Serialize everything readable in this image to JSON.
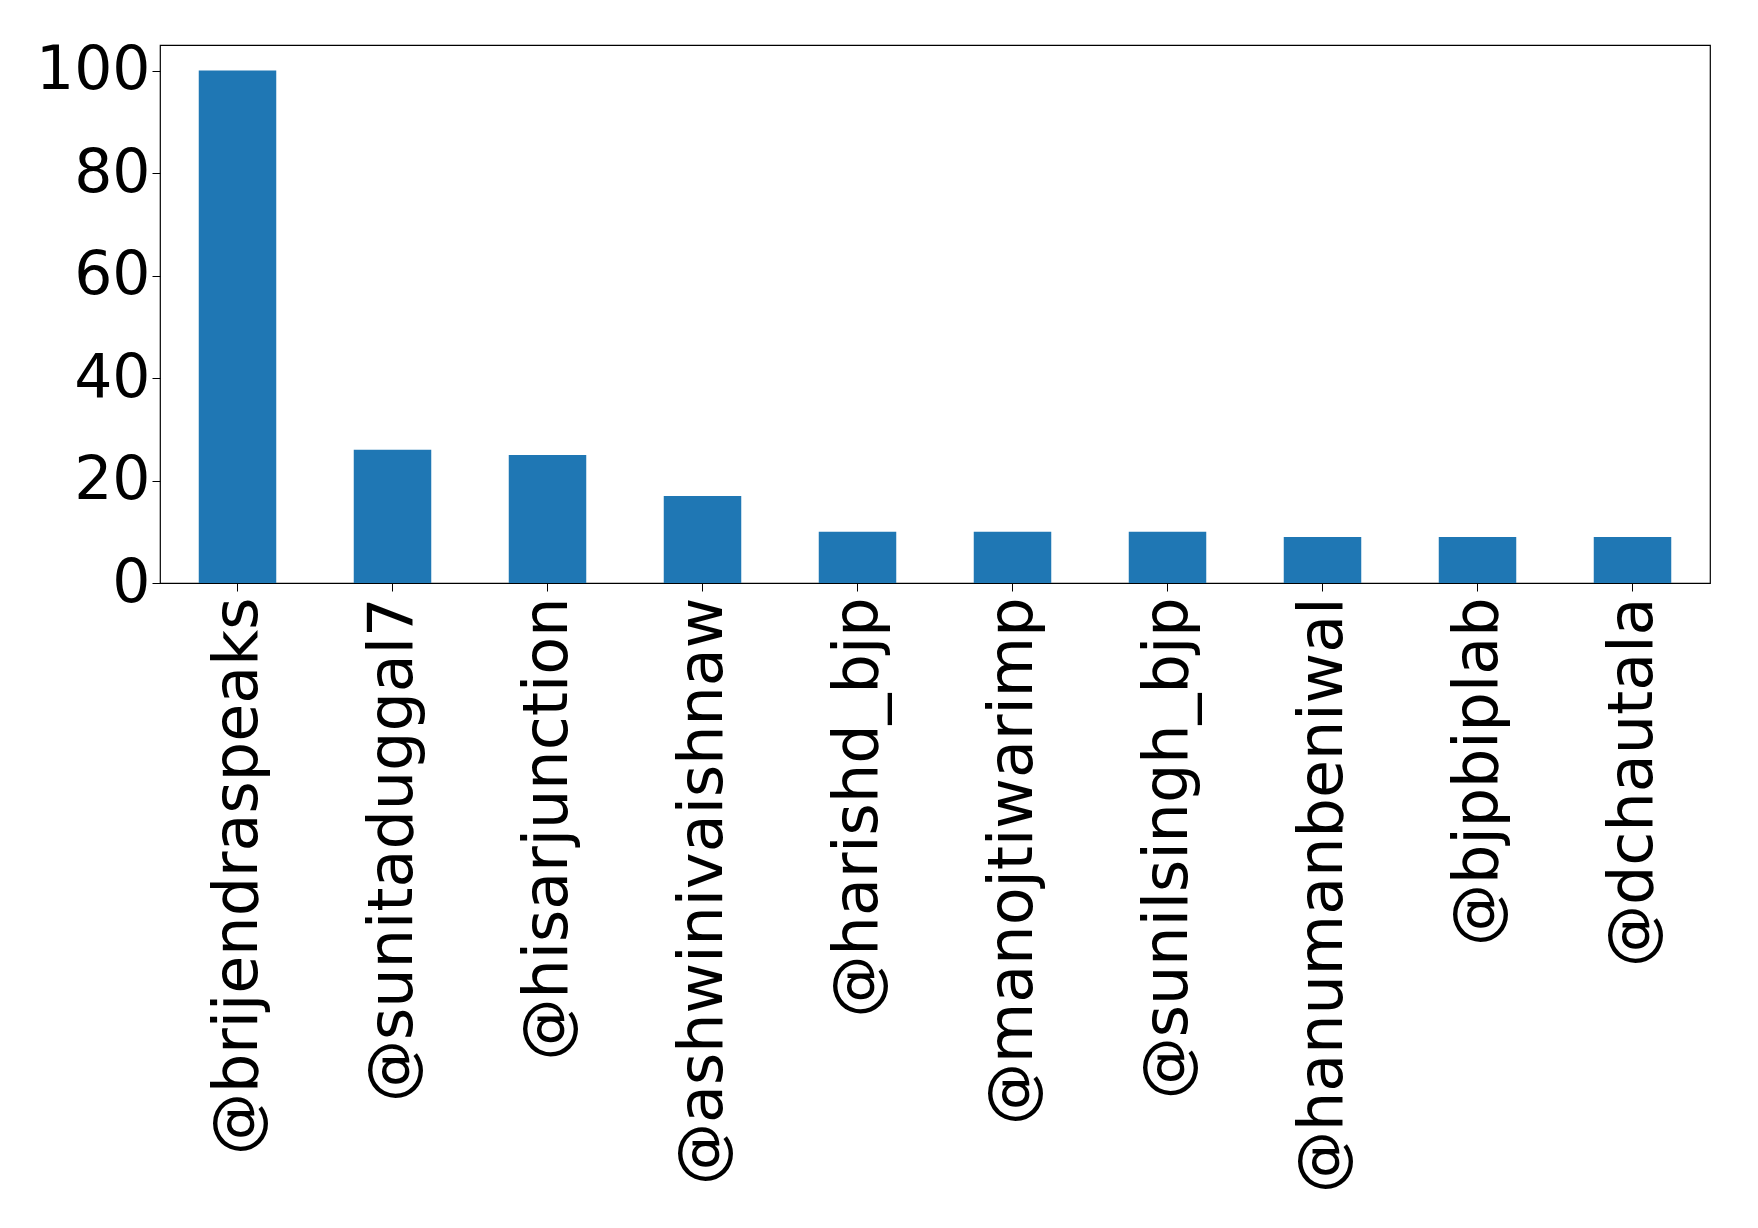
{
  "chart_data": {
    "type": "bar",
    "categories": [
      "@brijendraspeaks",
      "@sunitaduggal7",
      "@hisarjunction",
      "@ashwinivaishnaw",
      "@harishd_bjp",
      "@manojtiwarimp",
      "@sunilsingh_bjp",
      "@hanumanbeniwal",
      "@bjpbiplab",
      "@dchautala"
    ],
    "values": [
      100,
      26,
      25,
      17,
      10,
      10,
      10,
      9,
      9,
      9
    ],
    "color": "#1f77b4",
    "ylim": [
      0,
      105
    ],
    "yticks": [
      0,
      20,
      40,
      60,
      80,
      100
    ],
    "grid": false
  }
}
